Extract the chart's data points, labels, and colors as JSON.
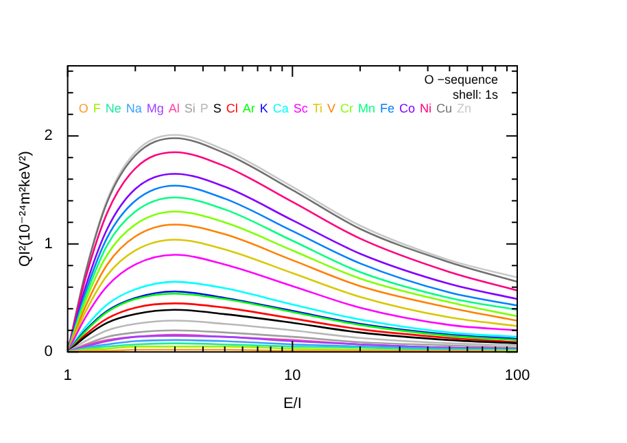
{
  "chart_data": {
    "type": "line",
    "xlabel": "E/I",
    "ylabel": "QI²(10⁻²⁴m²keV²)",
    "annotations": [
      "O −sequence",
      "shell: 1s"
    ],
    "x": [
      1,
      1.2,
      1.5,
      2,
      3,
      5,
      10,
      20,
      50,
      100
    ],
    "log": "x",
    "xlim": [
      1,
      100
    ],
    "ylim": [
      0,
      2.65
    ],
    "xticks": [
      1,
      {
        "value": 2,
        "label": null
      },
      {
        "value": 3,
        "label": null
      },
      {
        "value": 4,
        "label": null
      },
      {
        "value": 5,
        "label": null
      },
      {
        "value": 6,
        "label": null
      },
      {
        "value": 7,
        "label": null
      },
      {
        "value": 8,
        "label": null
      },
      {
        "value": 9,
        "label": null
      },
      10,
      {
        "value": 20,
        "label": null
      },
      {
        "value": 30,
        "label": null
      },
      {
        "value": 40,
        "label": null
      },
      {
        "value": 50,
        "label": null
      },
      {
        "value": 60,
        "label": null
      },
      {
        "value": 70,
        "label": null
      },
      {
        "value": 80,
        "label": null
      },
      {
        "value": 90,
        "label": null
      },
      100
    ],
    "yticks": [
      0,
      {
        "value": 0.2,
        "label": null
      },
      {
        "value": 0.4,
        "label": null
      },
      {
        "value": 0.6,
        "label": null
      },
      {
        "value": 0.8,
        "label": null
      },
      1,
      {
        "value": 1.2,
        "label": null
      },
      {
        "value": 1.4,
        "label": null
      },
      {
        "value": 1.6,
        "label": null
      },
      {
        "value": 1.8,
        "label": null
      },
      2,
      {
        "value": 2.2,
        "label": null
      },
      {
        "value": 2.4,
        "label": null
      },
      {
        "value": 2.6,
        "label": null
      }
    ],
    "legend": "top left",
    "marker": "none",
    "line_style": "solid",
    "series": [
      {
        "name": "O",
        "color": "#ff9a1f",
        "values": [
          0,
          0.01,
          0.01,
          0.02,
          0.02,
          0.02,
          0.01,
          0.01,
          0.01,
          0
        ]
      },
      {
        "name": "F",
        "color": "#a0f000",
        "values": [
          0,
          0.02,
          0.03,
          0.05,
          0.05,
          0.05,
          0.03,
          0.02,
          0.01,
          0.01
        ]
      },
      {
        "name": "Ne",
        "color": "#20e8a0",
        "values": [
          0,
          0.03,
          0.05,
          0.07,
          0.08,
          0.07,
          0.05,
          0.04,
          0.02,
          0.02
        ]
      },
      {
        "name": "Na",
        "color": "#3aa0ff",
        "values": [
          0,
          0.04,
          0.07,
          0.1,
          0.11,
          0.1,
          0.07,
          0.05,
          0.03,
          0.02
        ]
      },
      {
        "name": "Mg",
        "color": "#a040ff",
        "values": [
          0,
          0.05,
          0.1,
          0.14,
          0.15,
          0.14,
          0.1,
          0.07,
          0.04,
          0.03
        ]
      },
      {
        "name": "Al",
        "color": "#ff40a0",
        "values": [
          0,
          0.06,
          0.11,
          0.14,
          0.16,
          0.14,
          0.11,
          0.07,
          0.04,
          0.03
        ]
      },
      {
        "name": "Si",
        "color": "#a0a0a0",
        "values": [
          0,
          0.07,
          0.14,
          0.18,
          0.2,
          0.18,
          0.14,
          0.09,
          0.06,
          0.04
        ]
      },
      {
        "name": "P",
        "color": "#b8b8b8",
        "values": [
          0,
          0.1,
          0.2,
          0.26,
          0.29,
          0.26,
          0.2,
          0.13,
          0.08,
          0.06
        ]
      },
      {
        "name": "S",
        "color": "#000000",
        "values": [
          0,
          0.14,
          0.27,
          0.35,
          0.39,
          0.35,
          0.27,
          0.18,
          0.11,
          0.08
        ]
      },
      {
        "name": "Cl",
        "color": "#ff0000",
        "values": [
          0,
          0.16,
          0.31,
          0.41,
          0.45,
          0.41,
          0.31,
          0.21,
          0.13,
          0.09
        ]
      },
      {
        "name": "Ar",
        "color": "#00ff00",
        "values": [
          0,
          0.19,
          0.37,
          0.49,
          0.54,
          0.49,
          0.37,
          0.25,
          0.15,
          0.11
        ]
      },
      {
        "name": "K",
        "color": "#0000ff",
        "values": [
          0,
          0.2,
          0.38,
          0.5,
          0.56,
          0.5,
          0.38,
          0.26,
          0.16,
          0.12
        ]
      },
      {
        "name": "Ca",
        "color": "#00ffff",
        "values": [
          0,
          0.23,
          0.44,
          0.58,
          0.65,
          0.59,
          0.44,
          0.3,
          0.18,
          0.14
        ]
      },
      {
        "name": "Sc",
        "color": "#ff00ff",
        "values": [
          0,
          0.32,
          0.61,
          0.81,
          0.9,
          0.81,
          0.61,
          0.41,
          0.25,
          0.2
        ]
      },
      {
        "name": "Ti",
        "color": "#d8c800",
        "values": [
          0,
          0.37,
          0.71,
          0.94,
          1.04,
          0.95,
          0.73,
          0.51,
          0.32,
          0.24
        ]
      },
      {
        "name": "V",
        "color": "#ff8000",
        "values": [
          0,
          0.42,
          0.81,
          1.07,
          1.18,
          1.09,
          0.85,
          0.61,
          0.41,
          0.29
        ]
      },
      {
        "name": "Cr",
        "color": "#80ff00",
        "values": [
          0,
          0.47,
          0.9,
          1.18,
          1.3,
          1.2,
          0.94,
          0.68,
          0.46,
          0.33
        ]
      },
      {
        "name": "Mn",
        "color": "#00ff80",
        "values": [
          0,
          0.51,
          0.99,
          1.3,
          1.43,
          1.32,
          1.03,
          0.74,
          0.5,
          0.39
        ]
      },
      {
        "name": "Fe",
        "color": "#0080ff",
        "values": [
          0,
          0.55,
          1.06,
          1.4,
          1.54,
          1.42,
          1.12,
          0.82,
          0.55,
          0.43
        ]
      },
      {
        "name": "Co",
        "color": "#8000ff",
        "values": [
          0,
          0.6,
          1.14,
          1.51,
          1.65,
          1.53,
          1.22,
          0.91,
          0.63,
          0.49
        ]
      },
      {
        "name": "Ni",
        "color": "#ff0080",
        "values": [
          0,
          0.68,
          1.29,
          1.7,
          1.85,
          1.72,
          1.39,
          1.05,
          0.74,
          0.57
        ]
      },
      {
        "name": "Cu",
        "color": "#707070",
        "values": [
          0,
          0.73,
          1.39,
          1.82,
          1.98,
          1.84,
          1.5,
          1.14,
          0.83,
          0.65
        ]
      },
      {
        "name": "Zn",
        "color": "#c8c8c8",
        "values": [
          0,
          0.74,
          1.41,
          1.85,
          2.01,
          1.87,
          1.53,
          1.17,
          0.85,
          0.69
        ]
      }
    ]
  }
}
